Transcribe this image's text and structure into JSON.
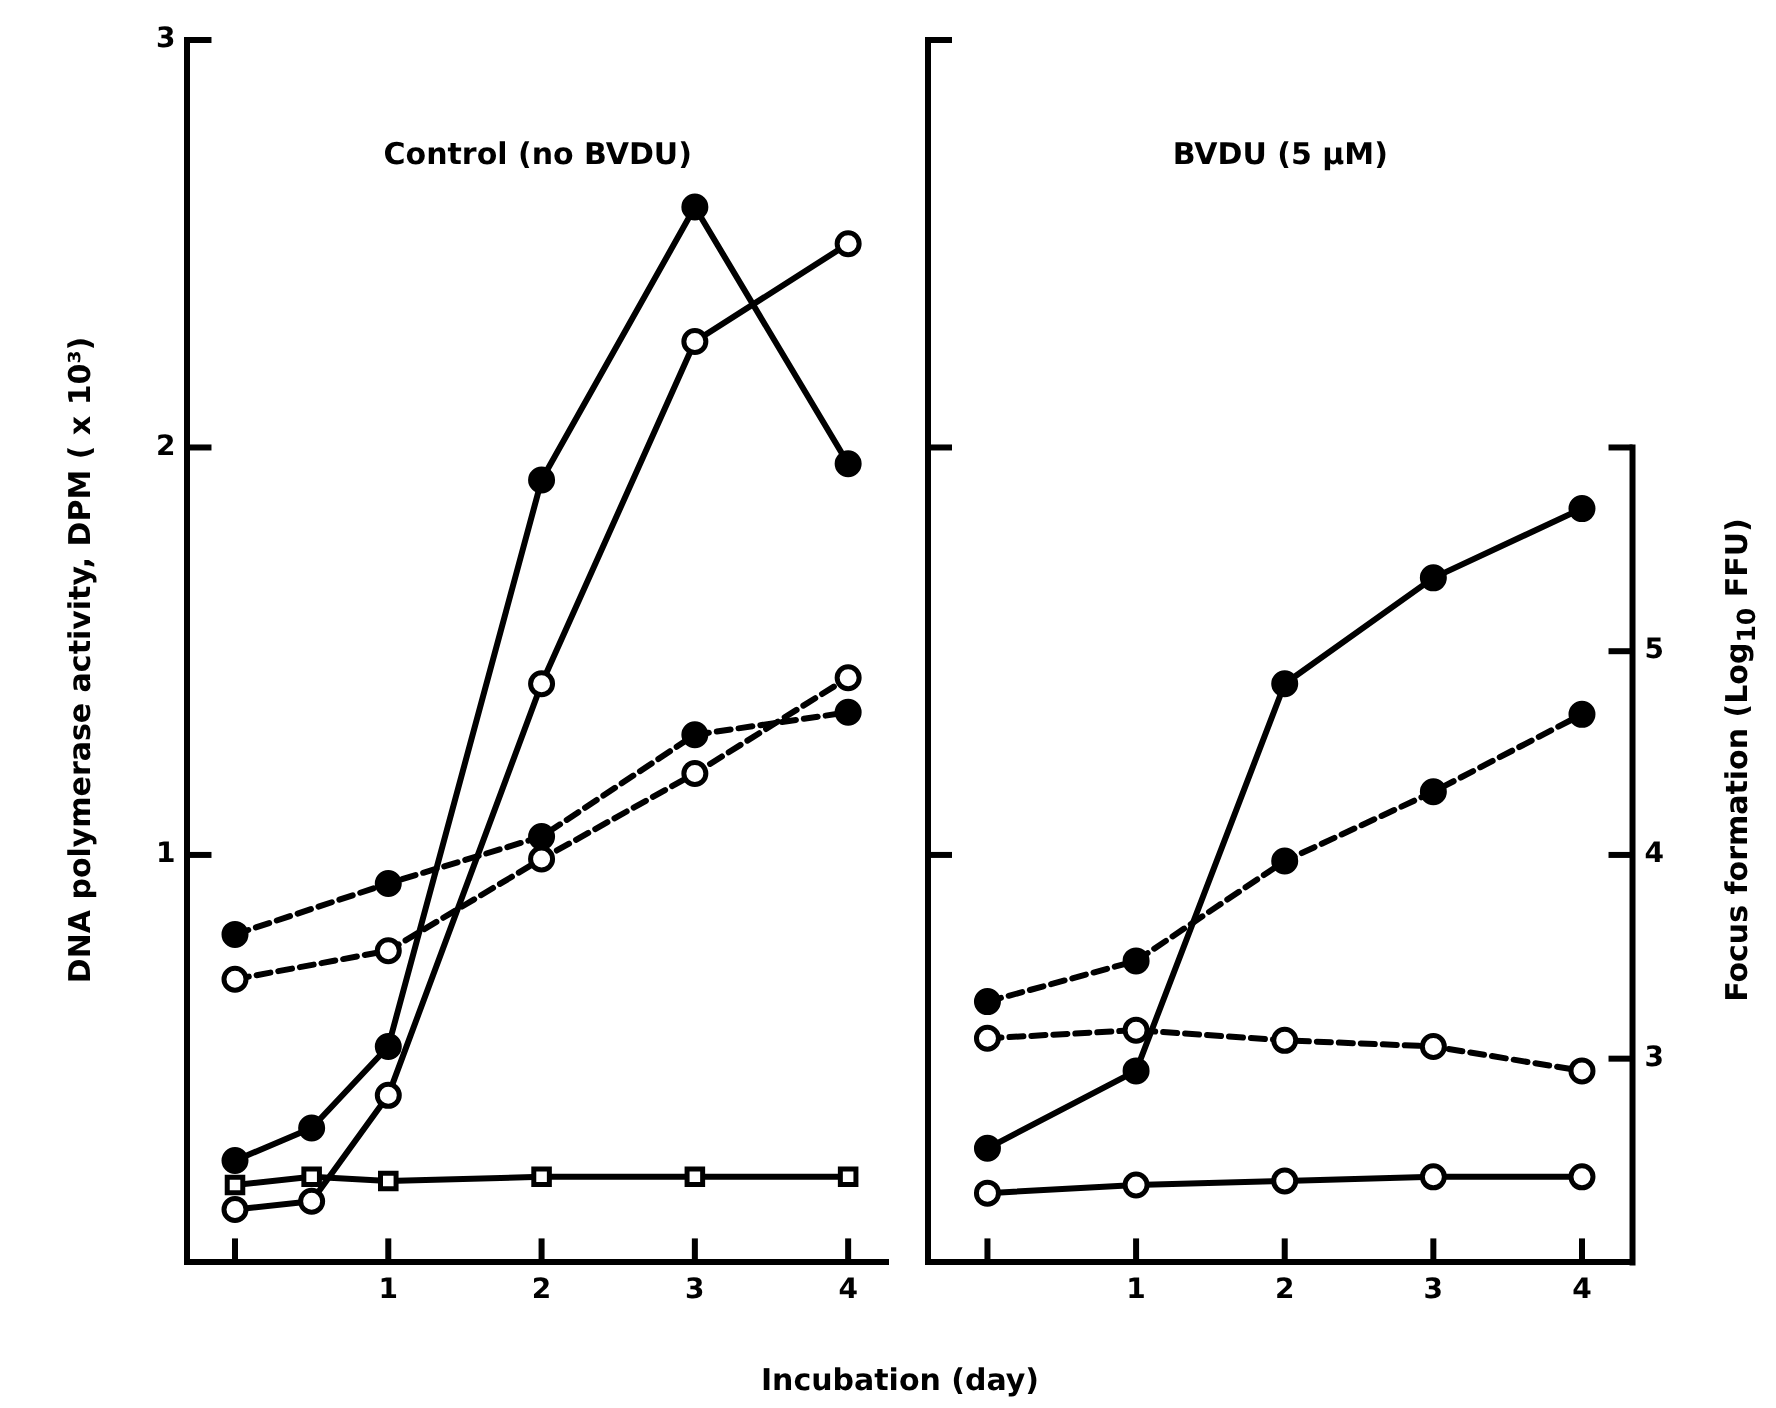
{
  "chart_data": [
    {
      "type": "line",
      "title": "Control (no BVDU)",
      "xlabel": "Incubation (day)",
      "ylabel": "DNA polymerase activity, DPM ( x 10³)",
      "xlim": [
        -0.31,
        4.26
      ],
      "xticks": [
        {
          "value": 0,
          "label": null
        },
        1,
        2,
        3,
        4
      ],
      "ylim": [
        0,
        3
      ],
      "yticks": [
        1,
        2,
        3
      ],
      "tick_labels": "xy",
      "y2lim": [
        2,
        8
      ],
      "legend": false,
      "grid": false,
      "series": [
        {
          "color": "#000000",
          "marker": "circle",
          "line_style": "solid",
          "x": [
            0,
            0.5,
            1,
            2,
            3,
            4
          ],
          "values": [
            0.25,
            0.33,
            0.53,
            1.92,
            2.59,
            1.96
          ]
        },
        {
          "color": "#000000",
          "marker": "circle",
          "line_style": "solid",
          "x": [
            0,
            0.5,
            1,
            2,
            3,
            4
          ],
          "values": [
            0.13,
            0.15,
            0.41,
            1.42,
            2.26,
            2.5
          ]
        },
        {
          "color": "#000000",
          "marker": "square",
          "line_style": "solid",
          "x": [
            0,
            0.5,
            1,
            2,
            3,
            4
          ],
          "values": [
            0.19,
            0.21,
            0.2,
            0.21,
            0.21,
            0.21
          ]
        },
        {
          "color": "#000000",
          "marker": "circle",
          "line_style": "dashed",
          "axis": "y2",
          "x": [
            0,
            1,
            2,
            3,
            4
          ],
          "values": [
            3.61,
            3.86,
            4.09,
            4.59,
            4.7
          ]
        },
        {
          "color": "#000000",
          "marker": "circle",
          "line_style": "dashed",
          "axis": "y2",
          "x": [
            0,
            1,
            2,
            3,
            4
          ],
          "values": [
            3.39,
            3.53,
            3.98,
            4.4,
            4.87
          ]
        }
      ]
    },
    {
      "type": "line",
      "title": "BVDU (5 µM)",
      "y2label": "Focus formation (Log$_{10}$ FFU)",
      "x": [
        0,
        1,
        2,
        3,
        4
      ],
      "xlim": [
        -0.4,
        4.34
      ],
      "xticks": [
        {
          "value": 0,
          "label": null
        },
        1,
        2,
        3,
        4
      ],
      "ylim": [
        0,
        3
      ],
      "tick_labels": "xy2",
      "y2lim": [
        2,
        8
      ],
      "y2ticks": [
        3,
        4,
        5,
        {
          "value": 6,
          "label": null
        }
      ],
      "legend": false,
      "grid": false,
      "series": [
        {
          "color": "#000000",
          "marker": "circle",
          "line_style": "solid",
          "values": [
            0.28,
            0.47,
            1.42,
            1.68,
            1.85
          ]
        },
        {
          "color": "#000000",
          "marker": "circle",
          "line_style": "solid",
          "values": [
            0.17,
            0.19,
            0.2,
            0.21,
            0.21
          ]
        },
        {
          "color": "#000000",
          "marker": "circle",
          "line_style": "dashed",
          "axis": "y2",
          "values": [
            3.28,
            3.48,
            3.97,
            4.31,
            4.69
          ]
        },
        {
          "color": "#000000",
          "marker": "circle",
          "line_style": "dashed",
          "axis": "y2",
          "values": [
            3.1,
            3.14,
            3.09,
            3.06,
            2.94
          ]
        }
      ]
    }
  ]
}
